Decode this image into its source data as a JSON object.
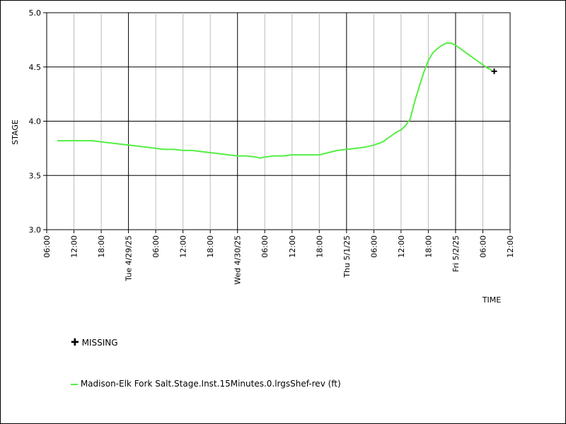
{
  "chart_data": {
    "type": "line",
    "ylabel": "STAGE",
    "xlabel": "TIME",
    "ylim": [
      3.0,
      5.0
    ],
    "yticks": [
      3.0,
      3.5,
      4.0,
      4.5,
      5.0
    ],
    "y_tick_labels": [
      "3.0",
      "3.5",
      "4.0",
      "4.5",
      "5.0"
    ],
    "xlim_hours": [
      0,
      102
    ],
    "xticks": [
      {
        "hour": 0,
        "label": "06:00"
      },
      {
        "hour": 6,
        "label": "12:00"
      },
      {
        "hour": 12,
        "label": "18:00"
      },
      {
        "hour": 18,
        "label": "Tue 4/29/25",
        "major": true
      },
      {
        "hour": 24,
        "label": "06:00"
      },
      {
        "hour": 30,
        "label": "12:00"
      },
      {
        "hour": 36,
        "label": "18:00"
      },
      {
        "hour": 42,
        "label": "Wed 4/30/25",
        "major": true
      },
      {
        "hour": 48,
        "label": "06:00"
      },
      {
        "hour": 54,
        "label": "12:00"
      },
      {
        "hour": 60,
        "label": "18:00"
      },
      {
        "hour": 66,
        "label": "Thu 5/1/25",
        "major": true
      },
      {
        "hour": 72,
        "label": "06:00"
      },
      {
        "hour": 78,
        "label": "12:00"
      },
      {
        "hour": 84,
        "label": "18:00"
      },
      {
        "hour": 90,
        "label": "Fri 5/2/25",
        "major": true
      },
      {
        "hour": 96,
        "label": "06:00"
      },
      {
        "hour": 102,
        "label": "12:00"
      }
    ],
    "series": [
      {
        "name": "Madison-Elk Fork Salt.Stage.Inst.15Minutes.0.lrgsShef-rev (ft)",
        "color": "#55ee44",
        "points": [
          [
            2.3,
            3.82
          ],
          [
            4,
            3.82
          ],
          [
            6,
            3.82
          ],
          [
            8,
            3.82
          ],
          [
            10,
            3.82
          ],
          [
            12,
            3.81
          ],
          [
            14,
            3.8
          ],
          [
            16,
            3.79
          ],
          [
            18,
            3.78
          ],
          [
            20,
            3.77
          ],
          [
            22,
            3.76
          ],
          [
            24,
            3.75
          ],
          [
            26,
            3.74
          ],
          [
            28,
            3.74
          ],
          [
            30,
            3.73
          ],
          [
            32,
            3.73
          ],
          [
            34,
            3.72
          ],
          [
            36,
            3.71
          ],
          [
            38,
            3.7
          ],
          [
            40,
            3.69
          ],
          [
            42,
            3.68
          ],
          [
            44,
            3.68
          ],
          [
            46,
            3.67
          ],
          [
            47,
            3.66
          ],
          [
            48,
            3.67
          ],
          [
            50,
            3.68
          ],
          [
            52,
            3.68
          ],
          [
            54,
            3.69
          ],
          [
            56,
            3.69
          ],
          [
            58,
            3.69
          ],
          [
            60,
            3.69
          ],
          [
            62,
            3.71
          ],
          [
            64,
            3.73
          ],
          [
            66,
            3.74
          ],
          [
            68,
            3.75
          ],
          [
            70,
            3.76
          ],
          [
            72,
            3.78
          ],
          [
            74,
            3.81
          ],
          [
            75,
            3.84
          ],
          [
            76,
            3.87
          ],
          [
            77,
            3.9
          ],
          [
            78,
            3.92
          ],
          [
            79,
            3.96
          ],
          [
            80,
            4.02
          ],
          [
            81,
            4.18
          ],
          [
            82,
            4.32
          ],
          [
            83,
            4.45
          ],
          [
            84,
            4.56
          ],
          [
            85,
            4.63
          ],
          [
            86,
            4.67
          ],
          [
            87,
            4.7
          ],
          [
            88,
            4.72
          ],
          [
            89,
            4.72
          ],
          [
            90,
            4.7
          ],
          [
            91,
            4.67
          ],
          [
            92,
            4.64
          ],
          [
            93,
            4.61
          ],
          [
            94,
            4.58
          ],
          [
            95,
            4.55
          ],
          [
            96,
            4.52
          ],
          [
            97,
            4.49
          ],
          [
            98,
            4.47
          ]
        ]
      }
    ],
    "missing_points": [
      [
        98.5,
        4.46
      ]
    ],
    "legend": [
      {
        "kind": "marker",
        "label": "MISSING"
      },
      {
        "kind": "line",
        "label": "Madison-Elk Fork Salt.Stage.Inst.15Minutes.0.lrgsShef-rev (ft)"
      }
    ],
    "grid": true
  }
}
